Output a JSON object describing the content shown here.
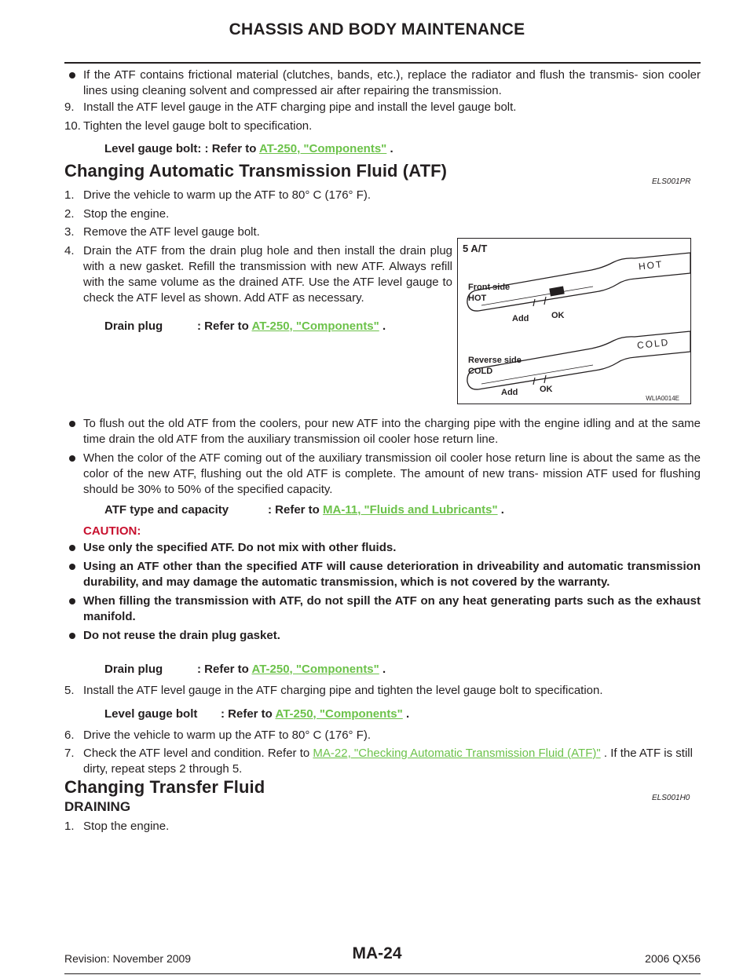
{
  "header": {
    "title": "CHASSIS AND BODY MAINTENANCE"
  },
  "intro": {
    "bullet1": "If the ATF contains frictional material (clutches, bands, etc.), replace the radiator and flush the transmis- sion cooler lines using cleaning solvent and compressed air after repairing the transmission.",
    "step9": {
      "n": "9.",
      "text": "Install the ATF level gauge in the ATF charging pipe and install the level gauge bolt."
    },
    "step10": {
      "n": "10.",
      "text": "Tighten the level gauge bolt to specification."
    },
    "spec": {
      "label": "Level gauge bolt:",
      "refer": ": Refer to",
      "link": "AT-250, \"Components\"",
      "tail": "."
    }
  },
  "section1": {
    "title": "Changing Automatic Transmission Fluid (ATF)",
    "code": "ELS001PR",
    "steps": [
      {
        "n": "1.",
        "text": "Drive the vehicle to warm up the ATF to 80° C (176° F)."
      },
      {
        "n": "2.",
        "text": "Stop the engine."
      },
      {
        "n": "3.",
        "text": "Remove the ATF level gauge bolt."
      },
      {
        "n": "4.",
        "text": "Drain the ATF from the drain plug hole and then install the drain plug with a new gasket. Refill the transmission with new ATF. Always refill with the same volume as the drained ATF. Use the ATF level gauge to check the ATF level as shown. Add ATF as necessary."
      }
    ],
    "spec_drain1": {
      "label": "Drain plug",
      "refer": ": Refer to",
      "link": "AT-250, \"Components\"",
      "tail": "."
    },
    "bullets": [
      "To flush out the old ATF from the coolers, pour new ATF into the charging pipe with the engine idling and at the same time drain the old ATF from the auxiliary transmission oil cooler hose return line.",
      "When the color of the ATF coming out of the auxiliary transmission oil cooler hose return line is about the same as the color of the new ATF, flushing out the old ATF is complete. The amount of new trans- mission ATF used for flushing should be 30% to 50% of the specified capacity."
    ],
    "spec_atf": {
      "label": "ATF type and capacity",
      "refer": ": Refer to",
      "link": "MA-11, \"Fluids and Lubricants\"",
      "tail": "."
    },
    "caution": {
      "heading": "CAUTION:",
      "items": [
        "Use only the specified ATF. Do not mix with other fluids.",
        "Using an ATF other than the specified ATF will cause deterioration in driveability and automatic transmission durability, and may damage the automatic transmission, which is not covered by the warranty.",
        "When filling the transmission with ATF, do not spill the ATF on any heat generating parts such as the exhaust manifold.",
        "Do not reuse the drain plug gasket."
      ]
    },
    "spec_drain2": {
      "label": "Drain plug",
      "refer": ": Refer to",
      "link": "AT-250, \"Components\"",
      "tail": "."
    },
    "step5": {
      "n": "5.",
      "text": "Install the ATF level gauge in the ATF charging pipe and tighten the level gauge bolt to specification."
    },
    "spec_bolt": {
      "label": "Level gauge bolt",
      "refer": ": Refer to",
      "link": "AT-250, \"Components\"",
      "tail": "."
    },
    "step6": {
      "n": "6.",
      "text": "Drive the vehicle to warm up the ATF to 80° C (176° F)."
    },
    "step7": {
      "n": "7.",
      "pre": "Check the ATF level and condition. Refer to",
      "link": "MA-22, \"Checking Automatic Transmission Fluid (ATF)\"",
      "post": ". If the ATF is still dirty, repeat steps 2 through 5."
    }
  },
  "figure": {
    "title": "5 A/T",
    "front_side": "Front side",
    "hot": "HOT",
    "hot_mark": "HOT",
    "reverse_side": "Reverse side",
    "cold": "COLD",
    "cold_mark": "COLD",
    "add1": "Add",
    "ok1": "OK",
    "add2": "Add",
    "ok2": "OK",
    "code": "WLIA0014E"
  },
  "section2": {
    "title": "Changing Transfer Fluid",
    "code": "ELS001H0",
    "subheading": "DRAINING",
    "step1": {
      "n": "1.",
      "text": "Stop the engine."
    }
  },
  "footer": {
    "revision": "Revision: November 2009",
    "page": "MA-24",
    "model": "2006 QX56"
  }
}
